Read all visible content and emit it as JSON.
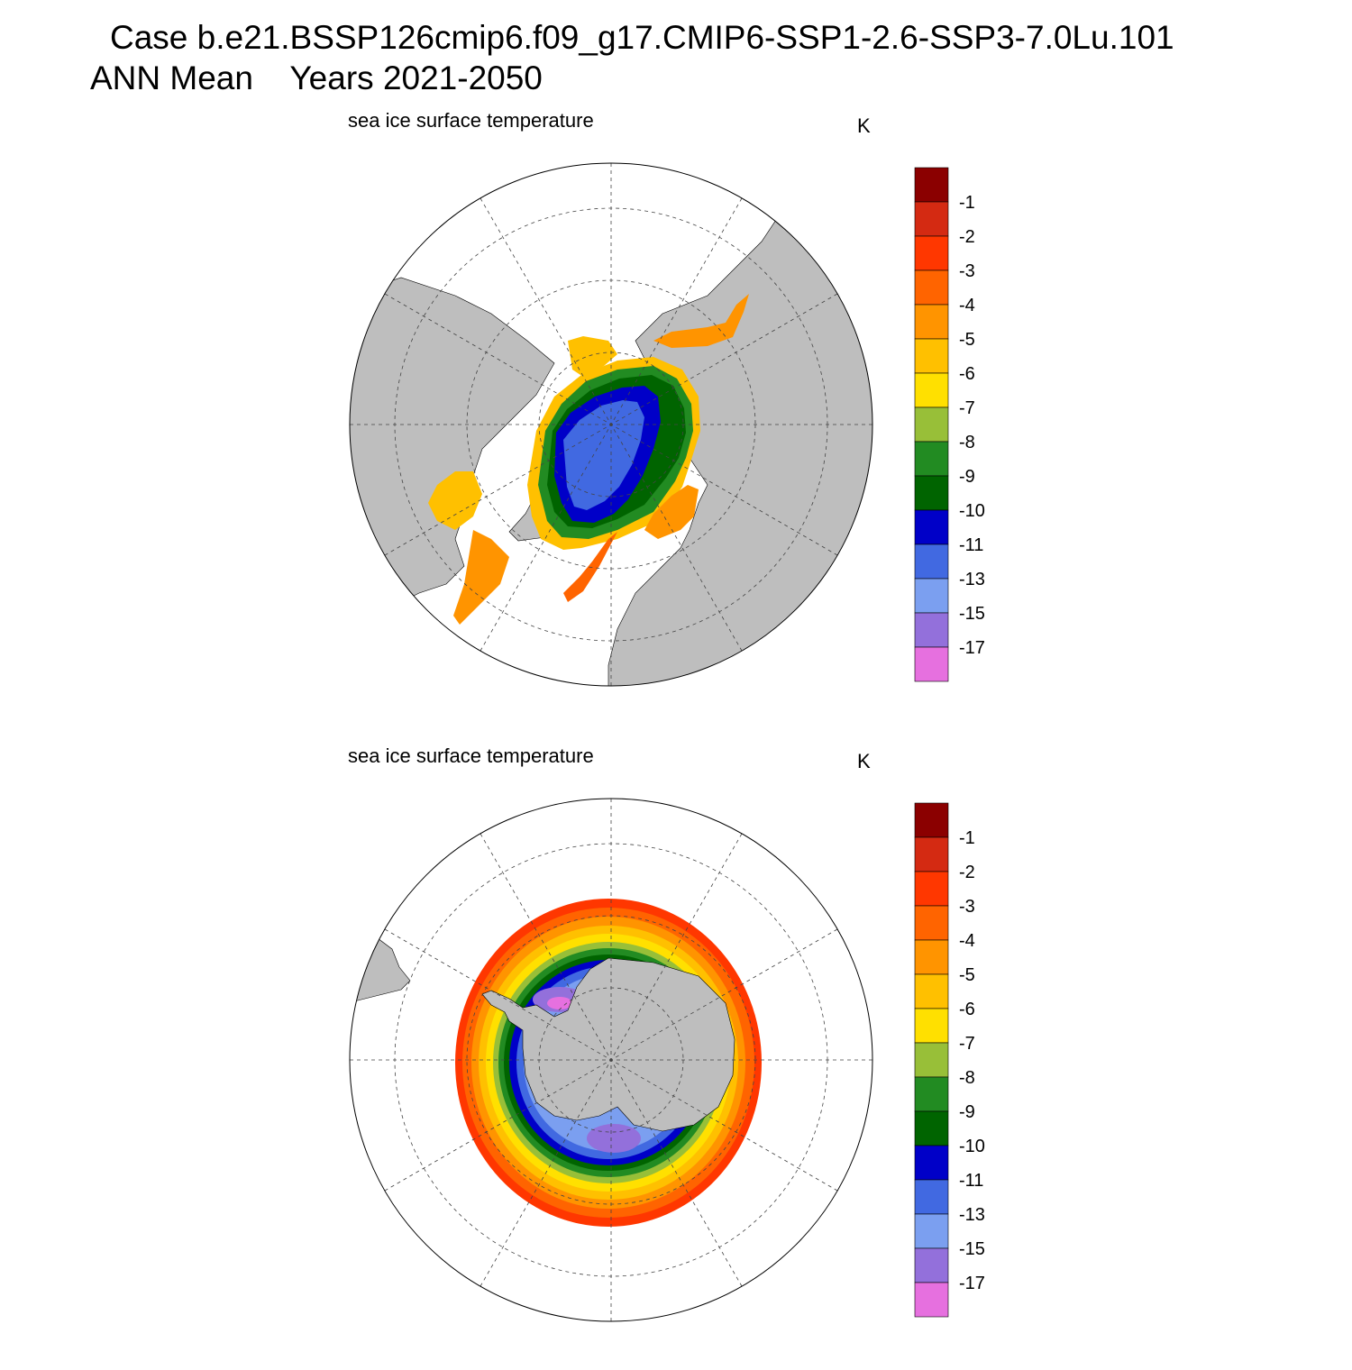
{
  "header": {
    "case_line": "Case b.e21.BSSP126cmip6.f09_g17.CMIP6-SSP1-2.6-SSP3-7.0Lu.101",
    "period_line": "ANN Mean    Years 2021-2050"
  },
  "panels": [
    {
      "hemisphere": "north",
      "title": "sea ice surface temperature",
      "units": "K"
    },
    {
      "hemisphere": "south",
      "title": "sea ice surface temperature",
      "units": "K"
    }
  ],
  "colorbar": {
    "labels": [
      "-1",
      "-2",
      "-3",
      "-4",
      "-5",
      "-6",
      "-7",
      "-8",
      "-9",
      "-10",
      "-11",
      "-13",
      "-15",
      "-17"
    ],
    "colors": [
      "#8b0000",
      "#d42a12",
      "#ff3700",
      "#ff6400",
      "#ff9400",
      "#ffc000",
      "#ffe000",
      "#98bf38",
      "#228b22",
      "#006400",
      "#0000c8",
      "#4169e1",
      "#7b9ff0",
      "#9370db",
      "#e670df"
    ]
  },
  "map_colors": {
    "land": "#bebebe",
    "ocean": "#ffffff"
  }
}
